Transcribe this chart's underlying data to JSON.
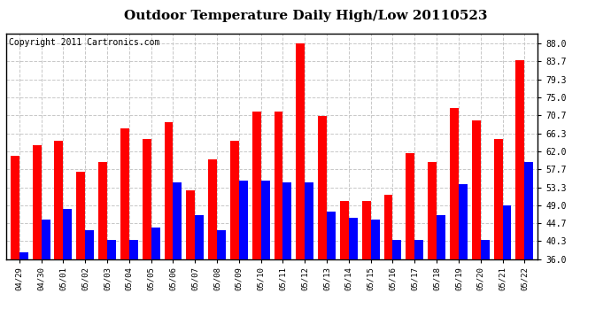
{
  "title": "Outdoor Temperature Daily High/Low 20110523",
  "copyright": "Copyright 2011 Cartronics.com",
  "dates": [
    "04/29",
    "04/30",
    "05/01",
    "05/02",
    "05/03",
    "05/04",
    "05/05",
    "05/06",
    "05/07",
    "05/08",
    "05/09",
    "05/10",
    "05/11",
    "05/12",
    "05/13",
    "05/14",
    "05/15",
    "05/16",
    "05/17",
    "05/18",
    "05/19",
    "05/20",
    "05/21",
    "05/22"
  ],
  "highs": [
    61.0,
    63.5,
    64.5,
    57.0,
    59.5,
    67.5,
    65.0,
    69.0,
    52.5,
    60.0,
    64.5,
    71.5,
    71.5,
    88.0,
    70.5,
    50.0,
    50.0,
    51.5,
    61.5,
    59.5,
    72.5,
    69.5,
    65.0,
    84.0
  ],
  "lows": [
    37.5,
    45.5,
    48.0,
    43.0,
    40.5,
    40.5,
    43.5,
    54.5,
    46.5,
    43.0,
    55.0,
    55.0,
    54.5,
    54.5,
    47.5,
    46.0,
    45.5,
    40.5,
    40.5,
    46.5,
    54.0,
    40.5,
    49.0,
    59.5
  ],
  "yticks": [
    36.0,
    40.3,
    44.7,
    49.0,
    53.3,
    57.7,
    62.0,
    66.3,
    70.7,
    75.0,
    79.3,
    83.7,
    88.0
  ],
  "ymin": 36.0,
  "ymax": 90.5,
  "bar_color_high": "#ff0000",
  "bar_color_low": "#0000ff",
  "background_color": "#ffffff",
  "plot_bg_color": "#ffffff",
  "grid_color": "#c8c8c8",
  "title_fontsize": 11,
  "copyright_fontsize": 7
}
